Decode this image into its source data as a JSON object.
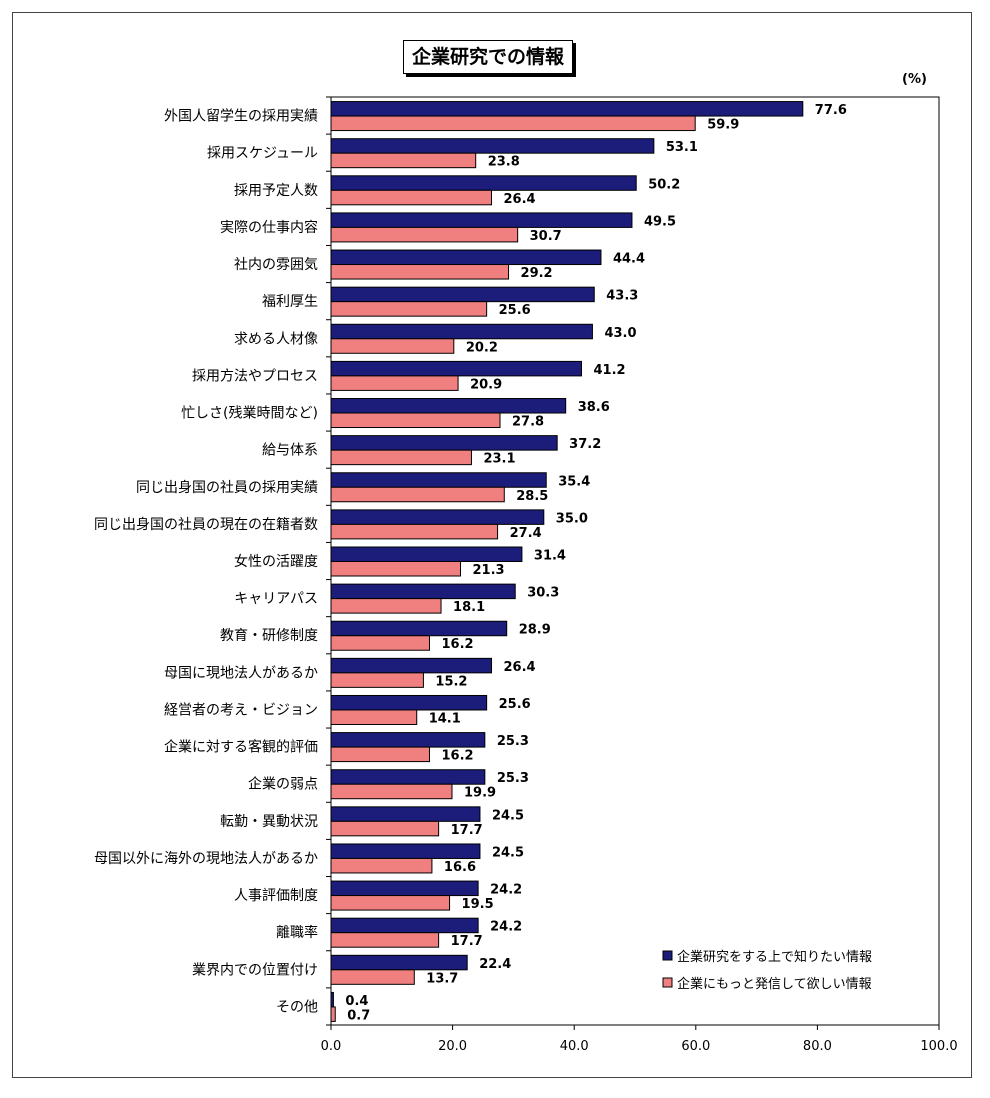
{
  "chart_data": {
    "type": "bar",
    "orientation": "horizontal",
    "title": "企業研究での情報",
    "unit_label": "(%)",
    "categories": [
      "外国人留学生の採用実績",
      "採用スケジュール",
      "採用予定人数",
      "実際の仕事内容",
      "社内の雰囲気",
      "福利厚生",
      "求める人材像",
      "採用方法やプロセス",
      "忙しさ(残業時間など)",
      "給与体系",
      "同じ出身国の社員の採用実績",
      "同じ出身国の社員の現在の在籍者数",
      "女性の活躍度",
      "キャリアパス",
      "教育・研修制度",
      "母国に現地法人があるか",
      "経営者の考え・ビジョン",
      "企業に対する客観的評価",
      "企業の弱点",
      "転勤・異動状況",
      "母国以外に海外の現地法人があるか",
      "人事評価制度",
      "離職率",
      "業界内での位置付け",
      "その他"
    ],
    "series": [
      {
        "name": "企業研究をする上で知りたい情報",
        "color": "#1c1c7a",
        "values": [
          77.6,
          53.1,
          50.2,
          49.5,
          44.4,
          43.3,
          43.0,
          41.2,
          38.6,
          37.2,
          35.4,
          35.0,
          31.4,
          30.3,
          28.9,
          26.4,
          25.6,
          25.3,
          25.3,
          24.5,
          24.5,
          24.2,
          24.2,
          22.4,
          0.4
        ],
        "labels": [
          "77.6",
          "53.1",
          "50.2",
          "49.5",
          "44.4",
          "43.3",
          "43.0",
          "41.2",
          "38.6",
          "37.2",
          "35.4",
          "35.0",
          "31.4",
          "30.3",
          "28.9",
          "26.4",
          "25.6",
          "25.3",
          "25.3",
          "24.5",
          "24.5",
          "24.2",
          "24.2",
          "22.4",
          "0.4"
        ]
      },
      {
        "name": "企業にもっと発信して欲しい情報",
        "color": "#f08080",
        "values": [
          59.9,
          23.8,
          26.4,
          30.7,
          29.2,
          25.6,
          20.2,
          20.9,
          27.8,
          23.1,
          28.5,
          27.4,
          21.3,
          18.1,
          16.2,
          15.2,
          14.1,
          16.2,
          19.9,
          17.7,
          16.6,
          19.5,
          17.7,
          13.7,
          0.7
        ],
        "labels": [
          "59.9",
          "23.8",
          "26.4",
          "30.7",
          "29.2",
          "25.6",
          "20.2",
          "20.9",
          "27.8",
          "23.1",
          "28.5",
          "27.4",
          "21.3",
          "18.1",
          "16.2",
          "15.2",
          "14.1",
          "16.2",
          "19.9",
          "17.7",
          "16.6",
          "19.5",
          "17.7",
          "13.7",
          "0.7"
        ]
      }
    ],
    "xlim": [
      0,
      100
    ],
    "x_ticks": [
      "0.0",
      "20.0",
      "40.0",
      "60.0",
      "80.0",
      "100.0"
    ],
    "legend_position": "bottom-right",
    "grid": false
  }
}
